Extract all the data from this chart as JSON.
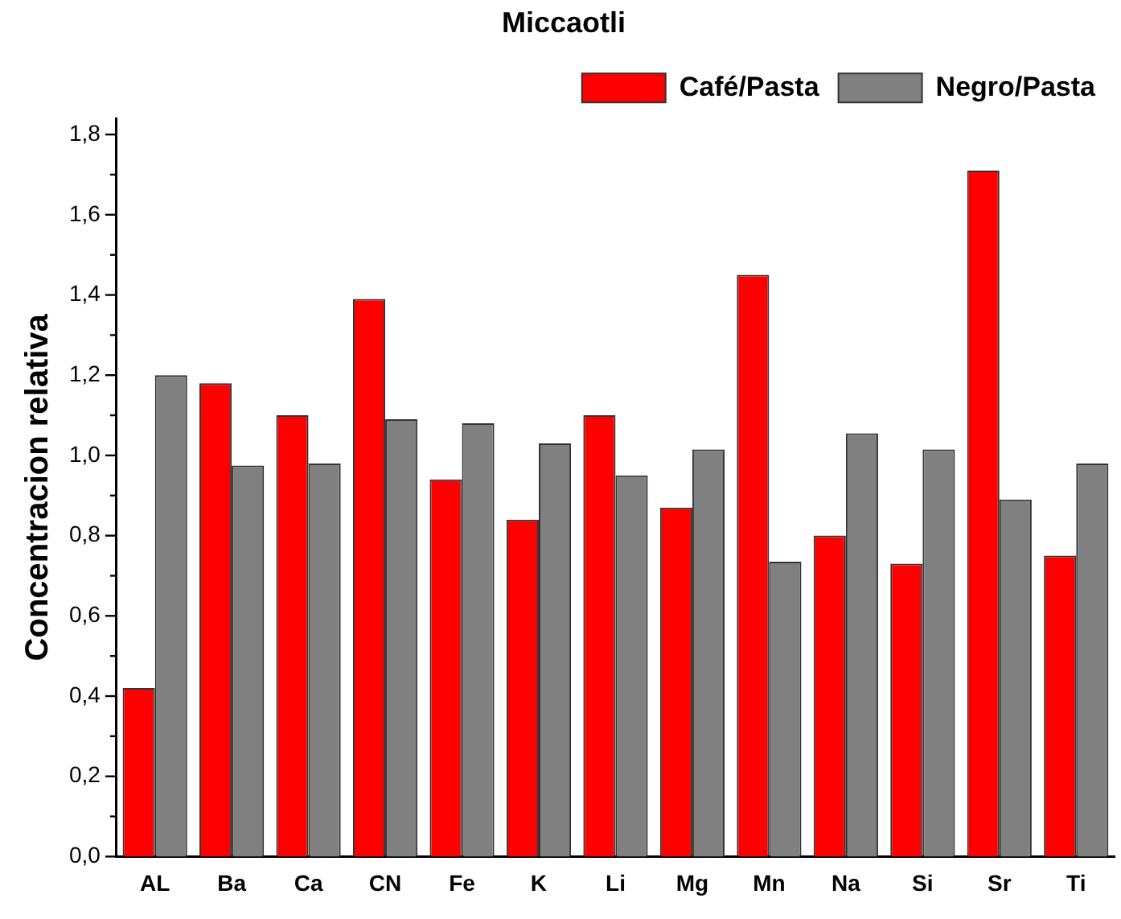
{
  "chart_data": {
    "type": "bar",
    "title": "Miccaotli",
    "ylabel": "Concentracion relativa",
    "categories": [
      "AL",
      "Ba",
      "Ca",
      "CN",
      "Fe",
      "K",
      "Li",
      "Mg",
      "Mn",
      "Na",
      "Si",
      "Sr",
      "Ti"
    ],
    "series": [
      {
        "name": "Café/Pasta",
        "color": "#ff0000",
        "values": [
          0.42,
          1.18,
          1.1,
          1.39,
          0.94,
          0.84,
          1.1,
          0.87,
          1.45,
          0.8,
          0.73,
          1.71,
          0.75
        ]
      },
      {
        "name": "Negro/Pasta",
        "color": "#808080",
        "values": [
          1.2,
          0.975,
          0.98,
          1.09,
          1.08,
          1.03,
          0.95,
          1.015,
          0.735,
          1.055,
          1.015,
          0.89,
          0.98
        ]
      }
    ],
    "ylim": [
      0,
      1.84
    ],
    "yticks": [
      {
        "value": 0,
        "label": "0,0"
      },
      {
        "value": 0.1,
        "label": null
      },
      {
        "value": 0.2,
        "label": "0,2"
      },
      {
        "value": 0.3,
        "label": null
      },
      {
        "value": 0.4,
        "label": "0,4"
      },
      {
        "value": 0.5,
        "label": null
      },
      {
        "value": 0.6,
        "label": "0,6"
      },
      {
        "value": 0.7,
        "label": null
      },
      {
        "value": 0.8,
        "label": "0,8"
      },
      {
        "value": 0.9,
        "label": null
      },
      {
        "value": 1.0,
        "label": "1,0"
      },
      {
        "value": 1.1,
        "label": null
      },
      {
        "value": 1.2,
        "label": "1,2"
      },
      {
        "value": 1.3,
        "label": null
      },
      {
        "value": 1.4,
        "label": "1,4"
      },
      {
        "value": 1.5,
        "label": null
      },
      {
        "value": 1.6,
        "label": "1,6"
      },
      {
        "value": 1.7,
        "label": null
      },
      {
        "value": 1.8,
        "label": "1,8"
      }
    ],
    "grid": false,
    "legend": "top right"
  }
}
